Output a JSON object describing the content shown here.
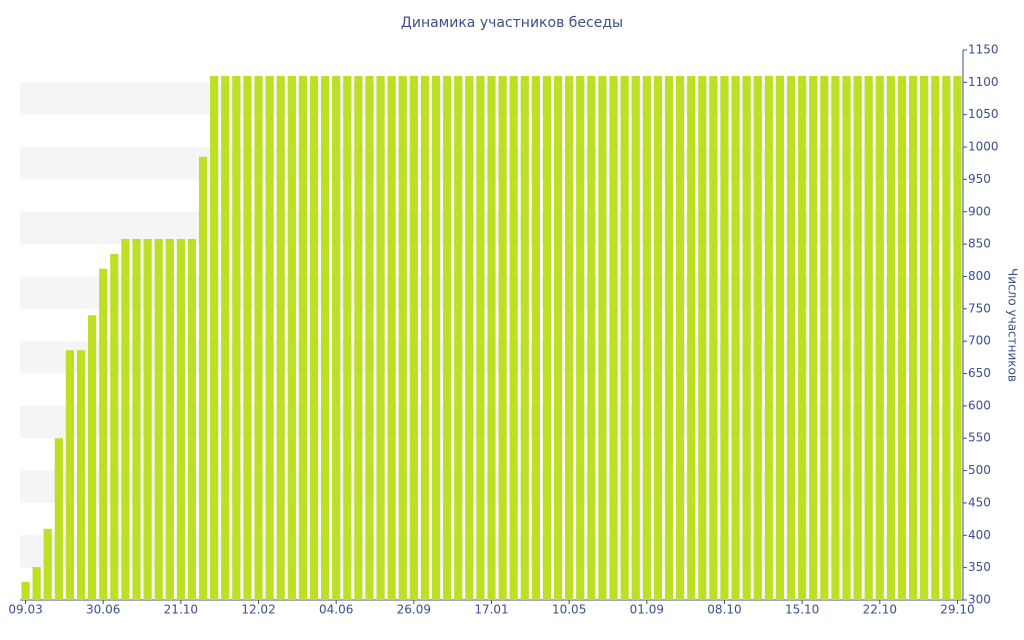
{
  "chart_data": {
    "type": "bar",
    "title": "Динамика участников беседы",
    "y_label": "Число участников",
    "categories": [
      "09.03",
      null,
      null,
      null,
      null,
      null,
      null,
      "30.06",
      null,
      null,
      null,
      null,
      null,
      null,
      "21.10",
      null,
      null,
      null,
      null,
      null,
      null,
      "12.02",
      null,
      null,
      null,
      null,
      null,
      null,
      "04.06",
      null,
      null,
      null,
      null,
      null,
      null,
      "26.09",
      null,
      null,
      null,
      null,
      null,
      null,
      "17.01",
      null,
      null,
      null,
      null,
      null,
      null,
      "10.05",
      null,
      null,
      null,
      null,
      null,
      null,
      "01.09",
      null,
      null,
      null,
      null,
      null,
      null,
      "08.10",
      null,
      null,
      null,
      null,
      null,
      null,
      "15.10",
      null,
      null,
      null,
      null,
      null,
      null,
      "22.10",
      null,
      null,
      null,
      null,
      null,
      null,
      "29.10"
    ],
    "values": [
      328,
      351,
      410,
      550,
      686,
      686,
      740,
      812,
      835,
      858,
      858,
      858,
      858,
      858,
      858,
      858,
      985,
      1110,
      1110,
      1110,
      1110,
      1110,
      1110,
      1110,
      1110,
      1110,
      1110,
      1110,
      1110,
      1110,
      1110,
      1110,
      1110,
      1110,
      1110,
      1110,
      1110,
      1110,
      1110,
      1110,
      1110,
      1110,
      1110,
      1110,
      1110,
      1110,
      1110,
      1110,
      1110,
      1110,
      1110,
      1110,
      1110,
      1110,
      1110,
      1110,
      1110,
      1110,
      1110,
      1110,
      1110,
      1110,
      1110,
      1110,
      1110,
      1110,
      1110,
      1110,
      1110,
      1110,
      1110,
      1110,
      1110,
      1110,
      1110,
      1110,
      1110,
      1110,
      1110,
      1110,
      1110,
      1110,
      1110,
      1110,
      1110
    ],
    "color": "#bddf26",
    "ylim": [
      300,
      1150
    ],
    "yticks": [
      300,
      350,
      400,
      450,
      500,
      550,
      600,
      650,
      700,
      750,
      800,
      850,
      900,
      950,
      1000,
      1050,
      1100,
      1150
    ],
    "grid": true
  }
}
